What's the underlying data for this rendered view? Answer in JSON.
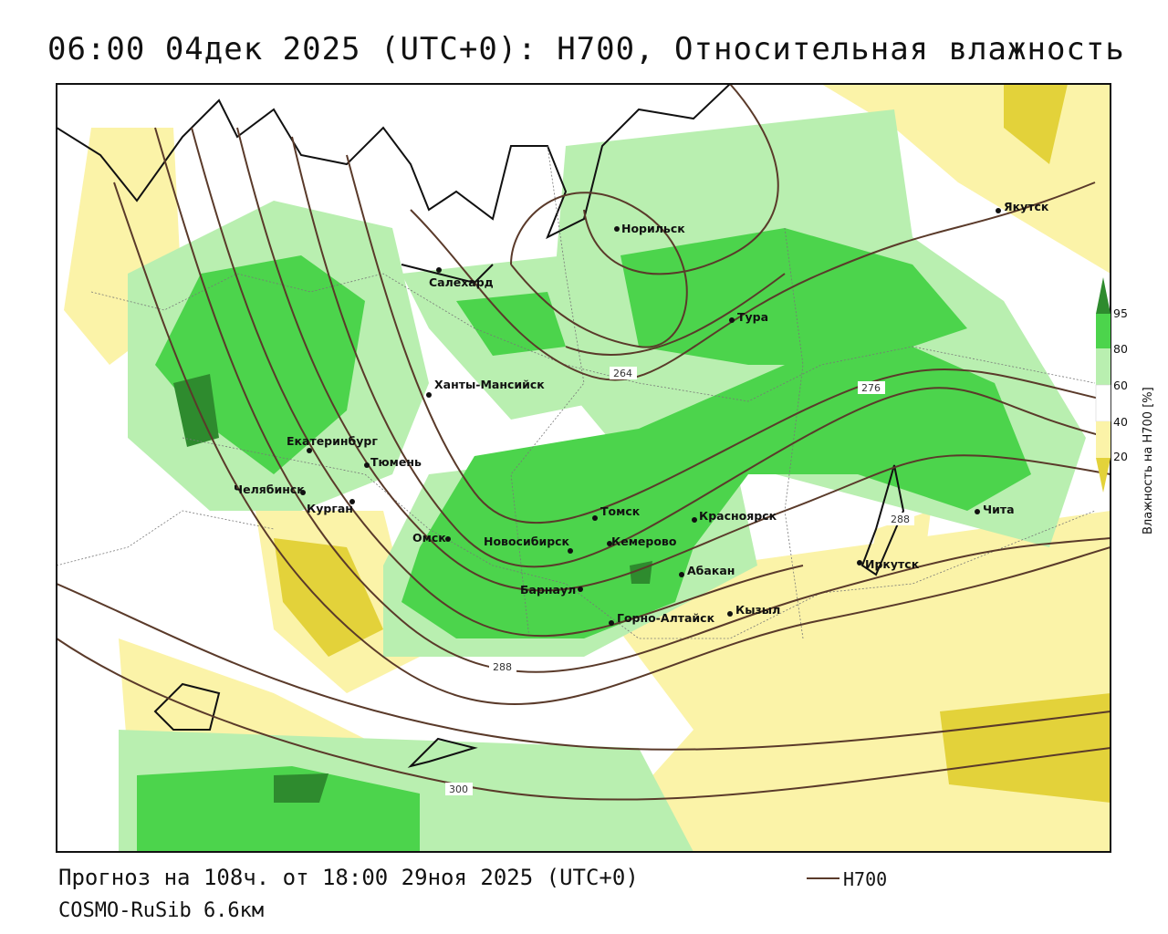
{
  "header": {
    "title": "06:00 04дек 2025 (UTC+0): H700, Относительная влажность"
  },
  "footer": {
    "forecast": "Прогноз на 108ч. от 18:00 29ноя 2025 (UTC+0)",
    "model": "COSMO-RuSib 6.6км",
    "contour_legend": "H700"
  },
  "colorbar": {
    "label": "Влажность на H700 [%]",
    "ticks": [
      "95",
      "80",
      "60",
      "40",
      "20"
    ]
  },
  "contour_labels": [
    "264",
    "276",
    "288",
    "288",
    "300"
  ],
  "cities": [
    {
      "name": "Норильск"
    },
    {
      "name": "Якутск"
    },
    {
      "name": "Салехард"
    },
    {
      "name": "Тура"
    },
    {
      "name": "Ханты-Мансийск"
    },
    {
      "name": "Екатеринбург"
    },
    {
      "name": "Тюмень"
    },
    {
      "name": "Челябинск"
    },
    {
      "name": "Курган"
    },
    {
      "name": "Омск"
    },
    {
      "name": "Томск"
    },
    {
      "name": "Новосибирск"
    },
    {
      "name": "Кемерово"
    },
    {
      "name": "Красноярск"
    },
    {
      "name": "Абакан"
    },
    {
      "name": "Барнаул"
    },
    {
      "name": "Горно-Алтайск"
    },
    {
      "name": "Кызыл"
    },
    {
      "name": "Иркутск"
    },
    {
      "name": "Чита"
    }
  ],
  "colors": {
    "rh_95": "#2e8b2e",
    "rh_80": "#4cd44c",
    "rh_60": "#b9efb0",
    "rh_40": "#ffffff",
    "rh_20": "#fbf3a8",
    "rh_dry": "#e3d23a",
    "contour": "#5a3a2a"
  }
}
